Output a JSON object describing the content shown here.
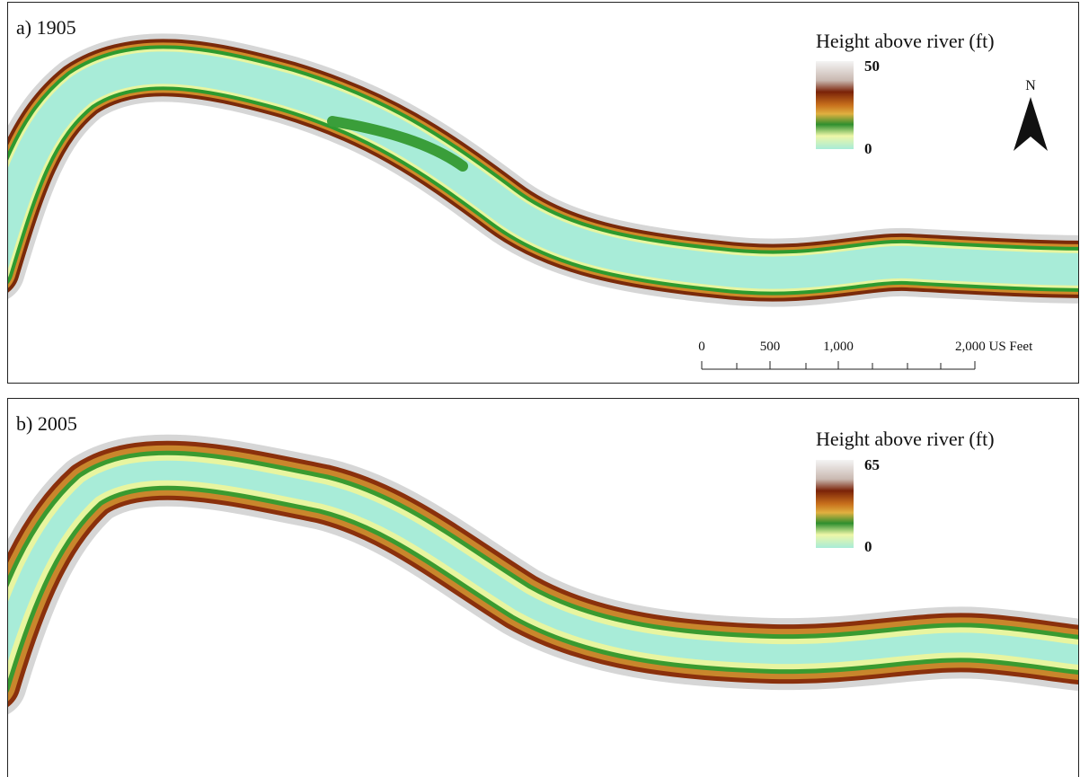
{
  "panels": [
    {
      "label": "a) 1905",
      "legend": {
        "title": "Height above river (ft)",
        "max": 50,
        "min": 0
      },
      "north": "N",
      "scale_bar": {
        "ticks": [
          0,
          500,
          {
            "value": 1000,
            "label": "1,000"
          },
          {
            "value": 2000,
            "label": "2,000 US Feet"
          }
        ]
      }
    },
    {
      "label": "b) 2005",
      "legend": {
        "title": "Height above river (ft)",
        "max": 65,
        "min": 0
      }
    }
  ]
}
